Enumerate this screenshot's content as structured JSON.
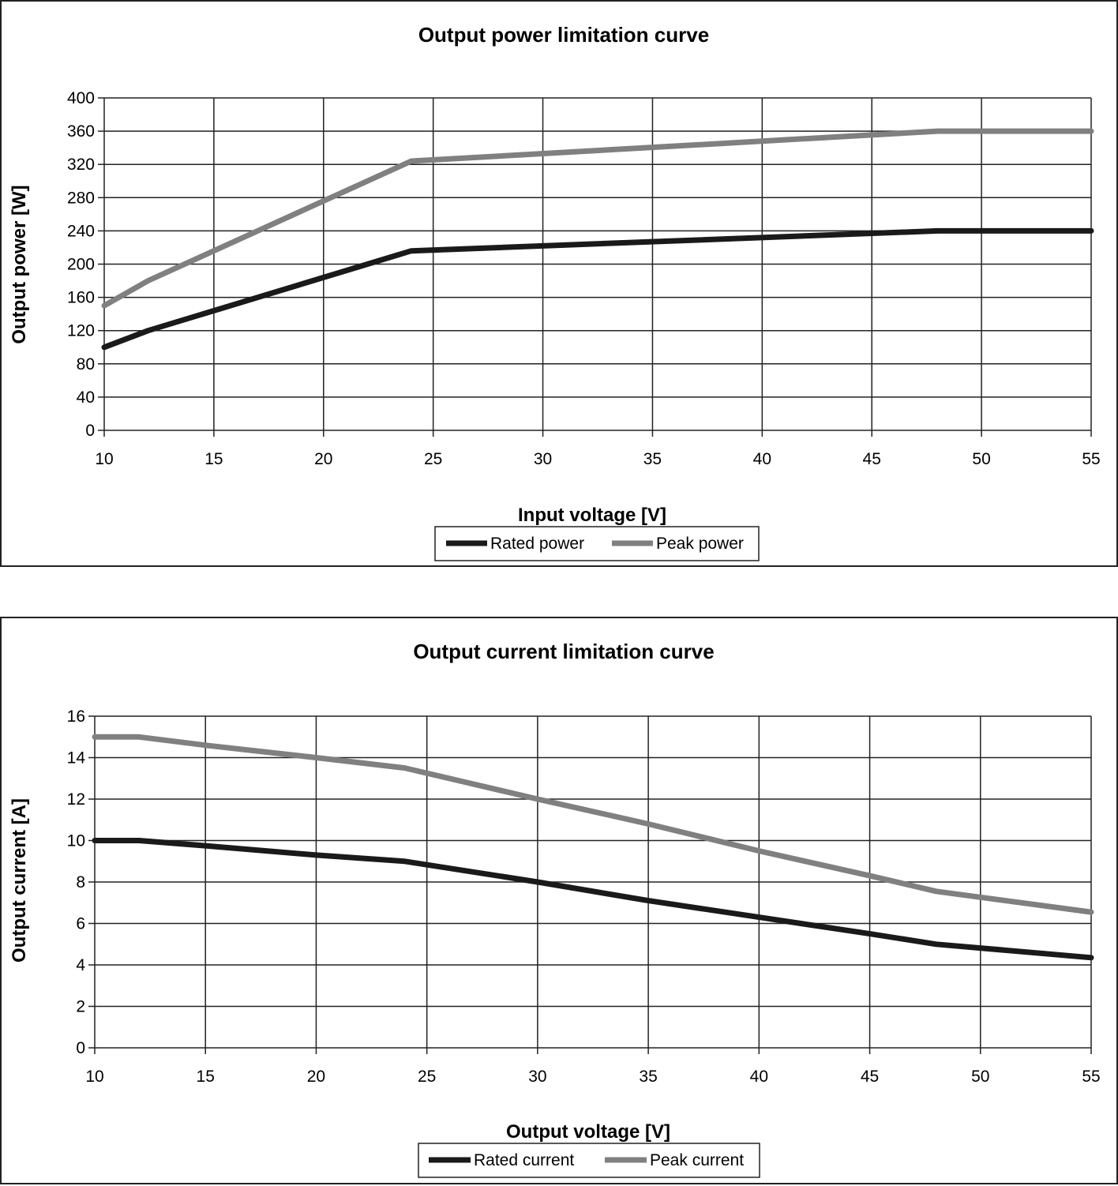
{
  "chart_data": [
    {
      "type": "line",
      "title": "Output power limitation curve",
      "xlabel": "Input voltage [V]",
      "ylabel": "Output power [W]",
      "xlim": [
        10,
        55
      ],
      "ylim": [
        0,
        400
      ],
      "xticks": [
        10,
        15,
        20,
        25,
        30,
        35,
        40,
        45,
        50,
        55
      ],
      "yticks": [
        0,
        40,
        80,
        120,
        160,
        200,
        240,
        280,
        320,
        360,
        400
      ],
      "grid": true,
      "legend_position": "bottom",
      "series": [
        {
          "name": "Rated power",
          "color": "#1a1a1a",
          "x": [
            10,
            12,
            24,
            48,
            55
          ],
          "y": [
            100,
            120,
            216,
            240,
            240
          ]
        },
        {
          "name": "Peak power",
          "color": "#808080",
          "x": [
            10,
            12,
            24,
            48,
            55
          ],
          "y": [
            150,
            180,
            324,
            360,
            360
          ]
        }
      ]
    },
    {
      "type": "line",
      "title": "Output current limitation curve",
      "xlabel": "Output voltage [V]",
      "ylabel": "Output current [A]",
      "xlim": [
        10,
        55
      ],
      "ylim": [
        0,
        16
      ],
      "xticks": [
        10,
        15,
        20,
        25,
        30,
        35,
        40,
        45,
        50,
        55
      ],
      "yticks": [
        0,
        2,
        4,
        6,
        8,
        10,
        12,
        14,
        16
      ],
      "grid": true,
      "legend_position": "bottom",
      "series": [
        {
          "name": "Rated current",
          "color": "#1a1a1a",
          "x": [
            10,
            12,
            15,
            20,
            24,
            30,
            35,
            40,
            45,
            48,
            55
          ],
          "y": [
            10,
            10,
            9.75,
            9.3,
            9.0,
            8.0,
            7.1,
            6.3,
            5.5,
            5.0,
            4.35
          ]
        },
        {
          "name": "Peak current",
          "color": "#808080",
          "x": [
            10,
            12,
            15,
            20,
            24,
            30,
            35,
            40,
            45,
            48,
            55
          ],
          "y": [
            15,
            15,
            14.6,
            14.0,
            13.5,
            12.0,
            10.8,
            9.5,
            8.3,
            7.55,
            6.55
          ]
        }
      ]
    }
  ]
}
